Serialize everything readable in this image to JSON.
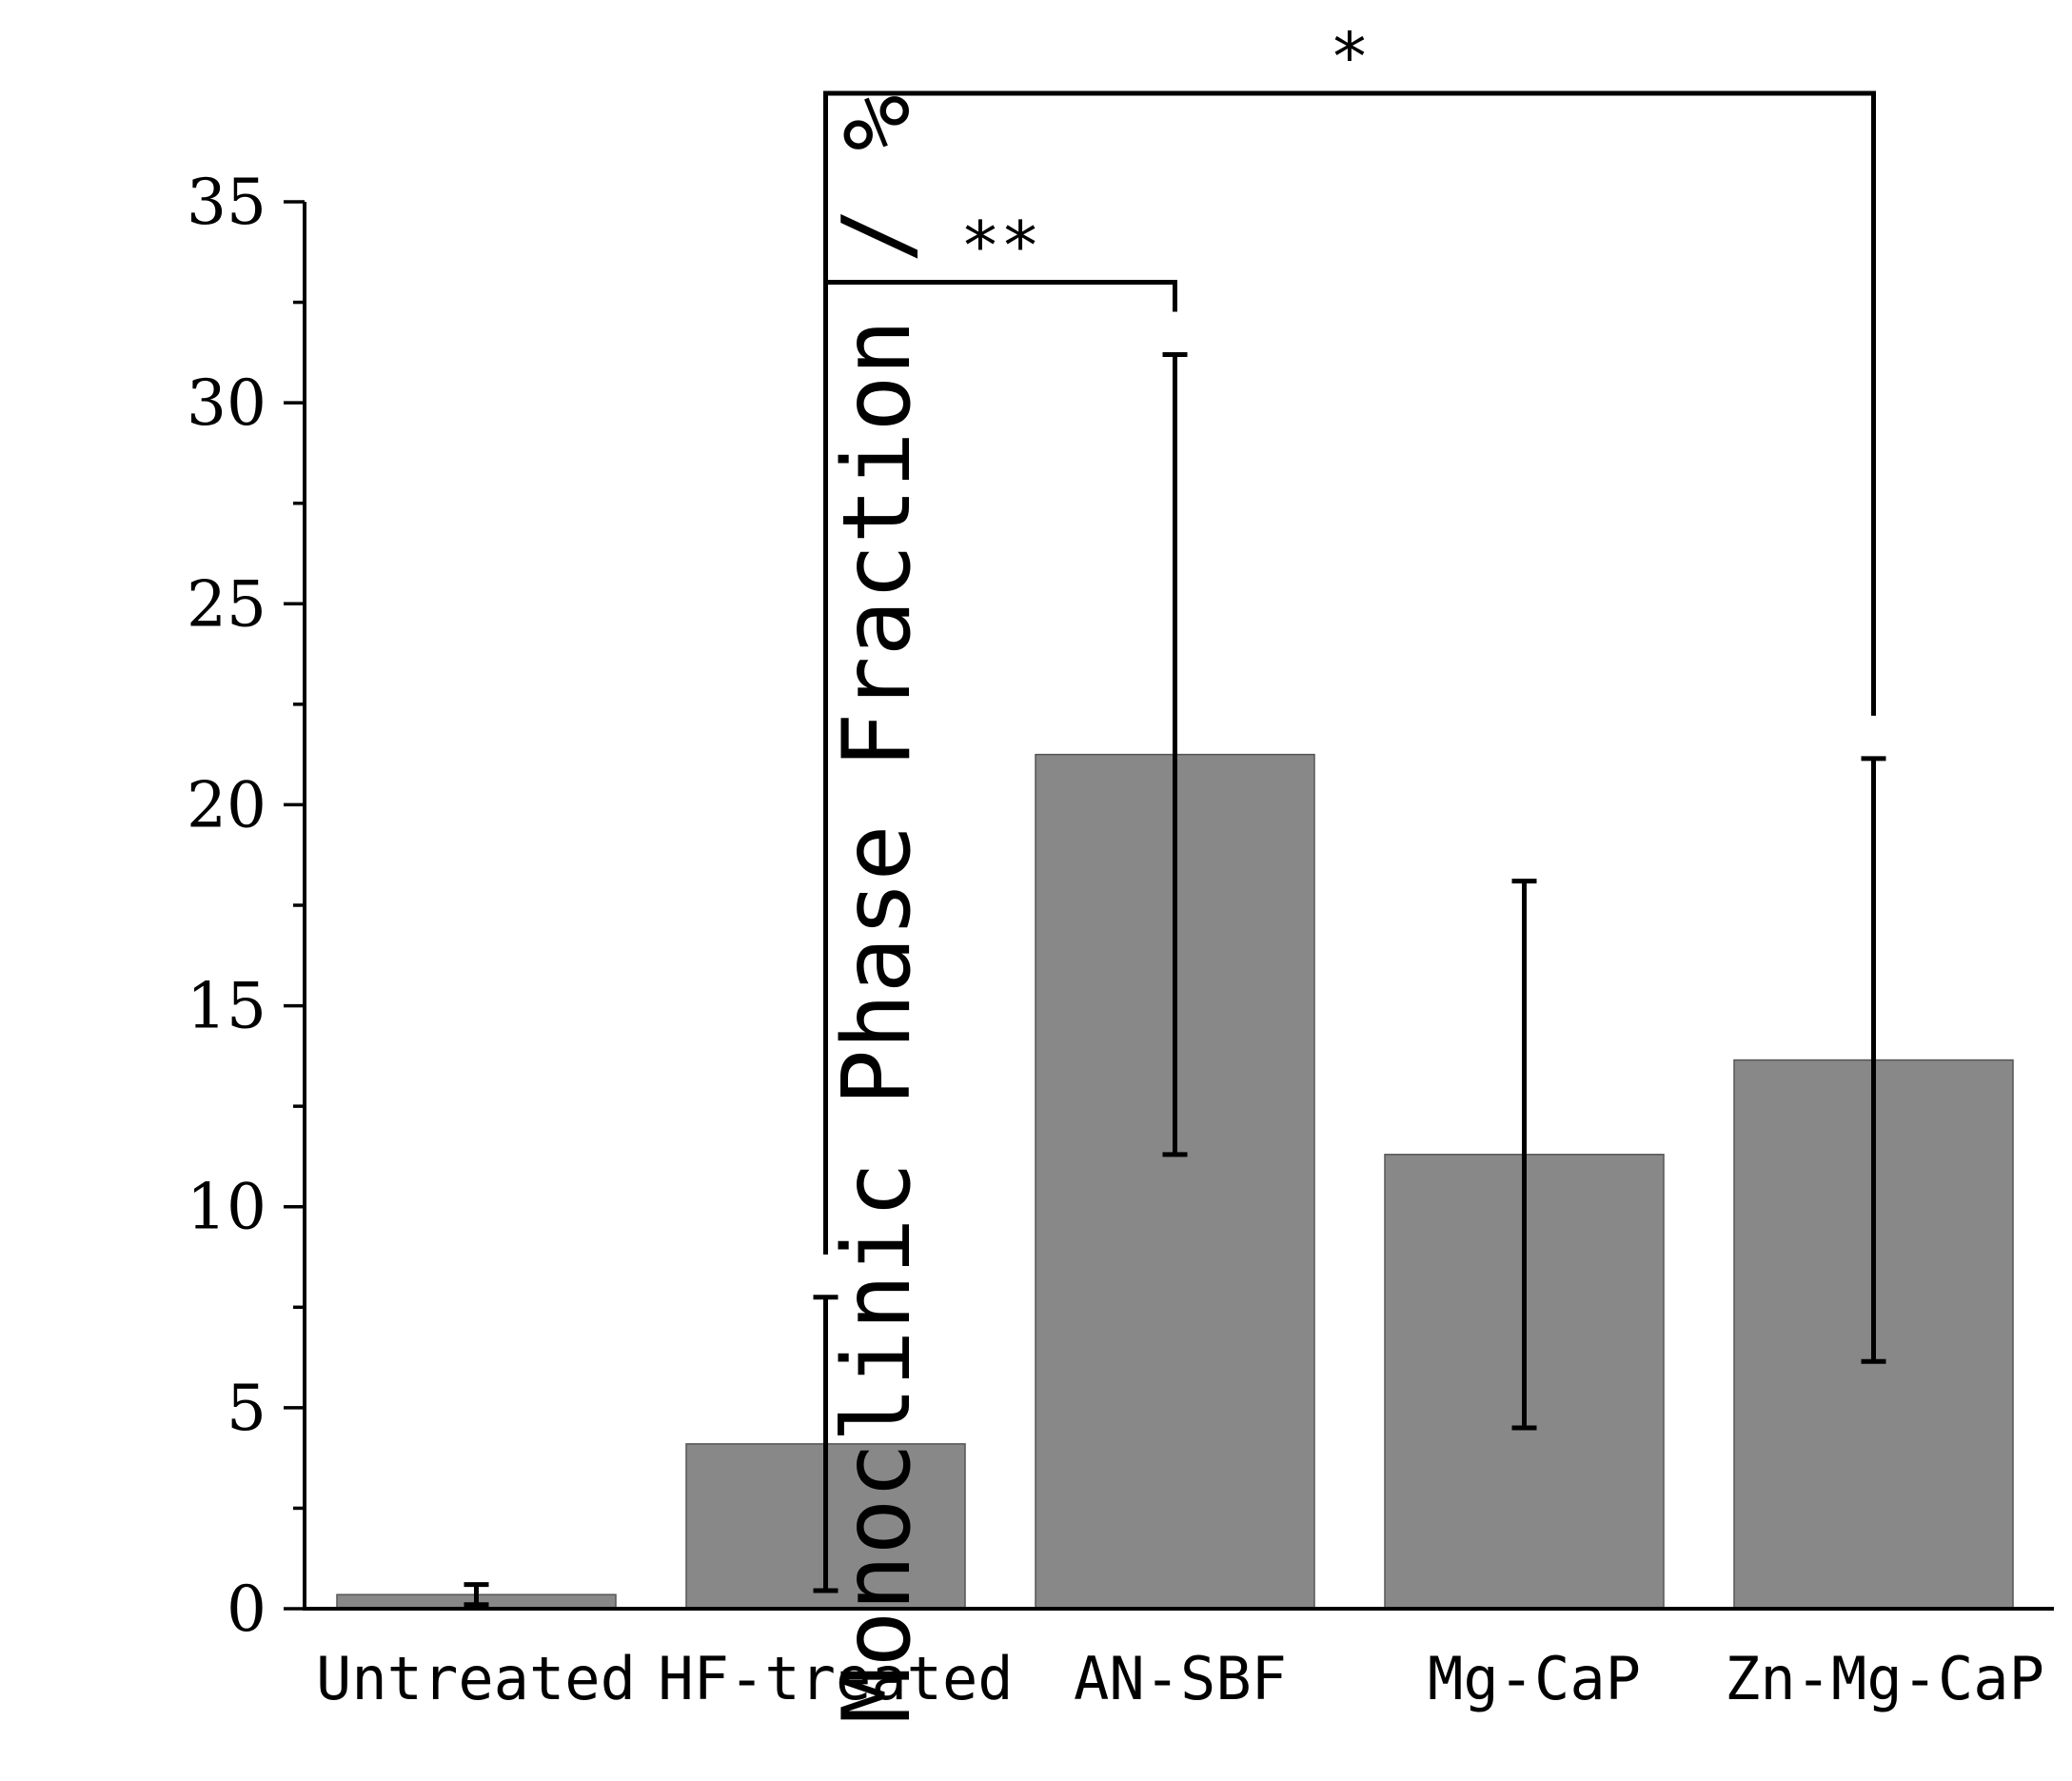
{
  "chart_data": {
    "type": "bar",
    "title": "",
    "xlabel": "",
    "ylabel": "Monoclinic Phase Fraction / %",
    "ylim": [
      0,
      35
    ],
    "yticks": [
      0,
      5,
      10,
      15,
      20,
      25,
      30,
      35
    ],
    "minor_tick_step": 2.5,
    "grid": false,
    "categories": [
      "Untreated",
      "HF-treated",
      "AN-SBF",
      "Mg-CaP",
      "Zn-Mg-CaP"
    ],
    "values": [
      0.35,
      4.1,
      21.25,
      11.3,
      13.65
    ],
    "errors": [
      0.25,
      3.65,
      9.95,
      6.8,
      7.5
    ],
    "bar_color": "#888888",
    "significance": [
      {
        "from": 1,
        "to": 2,
        "label": "**",
        "y": 33
      },
      {
        "from": 1,
        "to": 4,
        "label": "*",
        "y": 37.7
      }
    ]
  }
}
